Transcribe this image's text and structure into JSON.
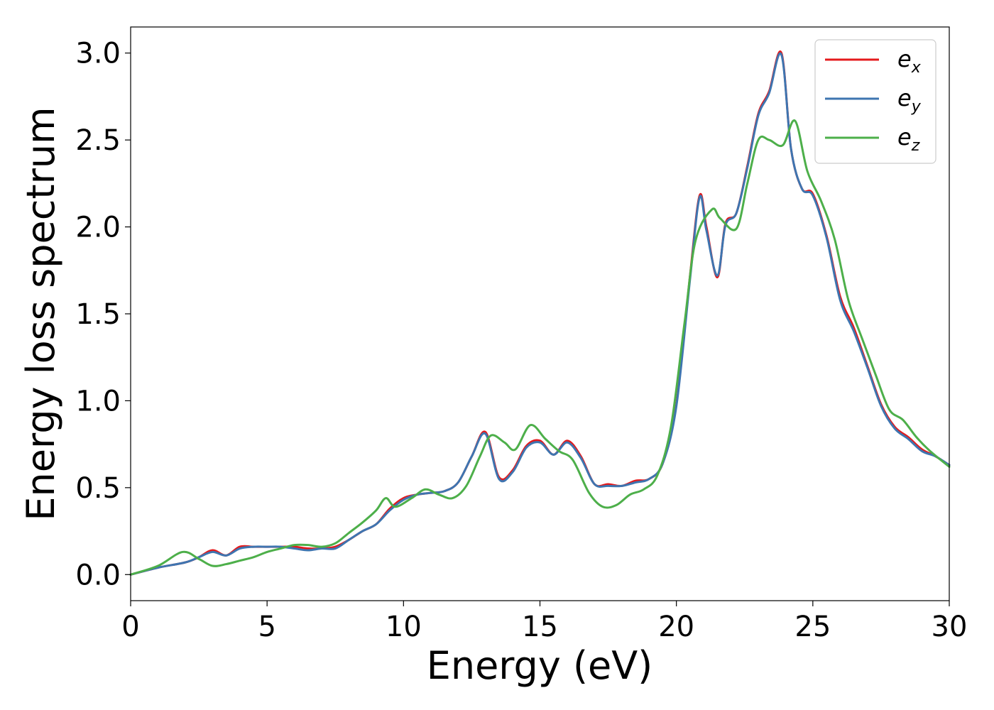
{
  "chart_data": {
    "type": "line",
    "title": "",
    "xlabel": "Energy (eV)",
    "ylabel": "Energy loss spectrum",
    "xlim": [
      0,
      30
    ],
    "ylim": [
      -0.15,
      3.15
    ],
    "xticks": [
      0,
      5,
      10,
      15,
      20,
      25,
      30
    ],
    "xtick_labels": [
      "0",
      "5",
      "10",
      "15",
      "20",
      "25",
      "30"
    ],
    "yticks": [
      0.0,
      0.5,
      1.0,
      1.5,
      2.0,
      2.5,
      3.0
    ],
    "ytick_labels": [
      "0.0",
      "0.5",
      "1.0",
      "1.5",
      "2.0",
      "2.5",
      "3.0"
    ],
    "grid": false,
    "legend_position": "top-right",
    "series": [
      {
        "name": "e_x",
        "label_main": "e",
        "label_sub": "x",
        "color": "#e41a1c",
        "x": [
          0,
          1,
          2,
          2.5,
          3,
          3.5,
          4,
          4.5,
          5,
          5.5,
          6,
          6.5,
          7,
          7.5,
          8,
          8.5,
          9,
          9.5,
          10,
          10.5,
          11,
          11.5,
          12,
          12.5,
          13,
          13.5,
          14,
          14.5,
          15,
          15.5,
          16,
          16.5,
          17,
          17.5,
          18,
          18.5,
          19,
          19.5,
          20,
          20.5,
          20.85,
          21.1,
          21.5,
          21.8,
          22.2,
          22.6,
          23,
          23.4,
          23.85,
          24.2,
          24.6,
          25,
          25.5,
          26,
          26.5,
          27,
          27.5,
          28,
          28.5,
          29,
          29.5,
          30
        ],
        "y": [
          0.0,
          0.04,
          0.07,
          0.1,
          0.14,
          0.11,
          0.16,
          0.16,
          0.16,
          0.16,
          0.16,
          0.15,
          0.15,
          0.16,
          0.2,
          0.25,
          0.29,
          0.38,
          0.44,
          0.46,
          0.47,
          0.48,
          0.53,
          0.68,
          0.82,
          0.56,
          0.6,
          0.74,
          0.77,
          0.69,
          0.77,
          0.68,
          0.52,
          0.52,
          0.51,
          0.54,
          0.55,
          0.64,
          0.98,
          1.72,
          2.18,
          2.0,
          1.71,
          2.02,
          2.08,
          2.35,
          2.65,
          2.78,
          3.0,
          2.45,
          2.22,
          2.19,
          1.95,
          1.6,
          1.42,
          1.2,
          0.98,
          0.85,
          0.79,
          0.72,
          0.68,
          0.63
        ]
      },
      {
        "name": "e_y",
        "label_main": "e",
        "label_sub": "y",
        "color": "#3e75b0",
        "x": [
          0,
          1,
          2,
          2.5,
          3,
          3.5,
          4,
          4.5,
          5,
          5.5,
          6,
          6.5,
          7,
          7.5,
          8,
          8.5,
          9,
          9.5,
          10,
          10.5,
          11,
          11.5,
          12,
          12.5,
          13,
          13.5,
          14,
          14.5,
          15,
          15.5,
          16,
          16.5,
          17,
          17.5,
          18,
          18.5,
          19,
          19.5,
          20,
          20.5,
          20.85,
          21.1,
          21.5,
          21.8,
          22.2,
          22.6,
          23,
          23.4,
          23.85,
          24.2,
          24.6,
          25,
          25.5,
          26,
          26.5,
          27,
          27.5,
          28,
          28.5,
          29,
          29.5,
          30
        ],
        "y": [
          0.0,
          0.04,
          0.07,
          0.1,
          0.13,
          0.11,
          0.15,
          0.16,
          0.16,
          0.16,
          0.15,
          0.14,
          0.15,
          0.15,
          0.2,
          0.25,
          0.29,
          0.37,
          0.43,
          0.46,
          0.47,
          0.48,
          0.53,
          0.68,
          0.81,
          0.55,
          0.59,
          0.73,
          0.76,
          0.69,
          0.76,
          0.67,
          0.52,
          0.51,
          0.51,
          0.53,
          0.55,
          0.64,
          0.97,
          1.7,
          2.17,
          1.98,
          1.72,
          2.01,
          2.08,
          2.34,
          2.64,
          2.77,
          2.99,
          2.45,
          2.22,
          2.18,
          1.94,
          1.58,
          1.4,
          1.19,
          0.97,
          0.84,
          0.78,
          0.71,
          0.68,
          0.63
        ]
      },
      {
        "name": "e_z",
        "label_main": "e",
        "label_sub": "z",
        "color": "#4daf4a",
        "x": [
          0,
          1,
          1.9,
          2.5,
          3,
          3.5,
          4,
          4.5,
          5,
          5.5,
          6,
          6.5,
          7,
          7.5,
          8,
          8.5,
          9,
          9.35,
          9.7,
          10.3,
          10.8,
          11.3,
          11.8,
          12.3,
          12.8,
          13.2,
          13.7,
          14.1,
          14.65,
          15.2,
          15.7,
          16.2,
          16.8,
          17.3,
          17.8,
          18.3,
          18.8,
          19.3,
          19.8,
          20.3,
          20.7,
          21.3,
          21.6,
          22.2,
          22.6,
          23,
          23.4,
          23.9,
          24.35,
          24.8,
          25.3,
          25.8,
          26.3,
          26.8,
          27.3,
          27.8,
          28.3,
          28.8,
          29.3,
          30
        ],
        "y": [
          0.0,
          0.05,
          0.13,
          0.09,
          0.05,
          0.06,
          0.08,
          0.1,
          0.13,
          0.15,
          0.17,
          0.17,
          0.16,
          0.18,
          0.24,
          0.3,
          0.37,
          0.44,
          0.39,
          0.44,
          0.49,
          0.46,
          0.44,
          0.51,
          0.68,
          0.8,
          0.76,
          0.72,
          0.86,
          0.78,
          0.71,
          0.66,
          0.47,
          0.39,
          0.4,
          0.46,
          0.49,
          0.57,
          0.85,
          1.45,
          1.92,
          2.1,
          2.05,
          1.99,
          2.25,
          2.5,
          2.5,
          2.47,
          2.61,
          2.32,
          2.15,
          1.93,
          1.58,
          1.36,
          1.15,
          0.95,
          0.89,
          0.79,
          0.71,
          0.62
        ]
      }
    ]
  }
}
